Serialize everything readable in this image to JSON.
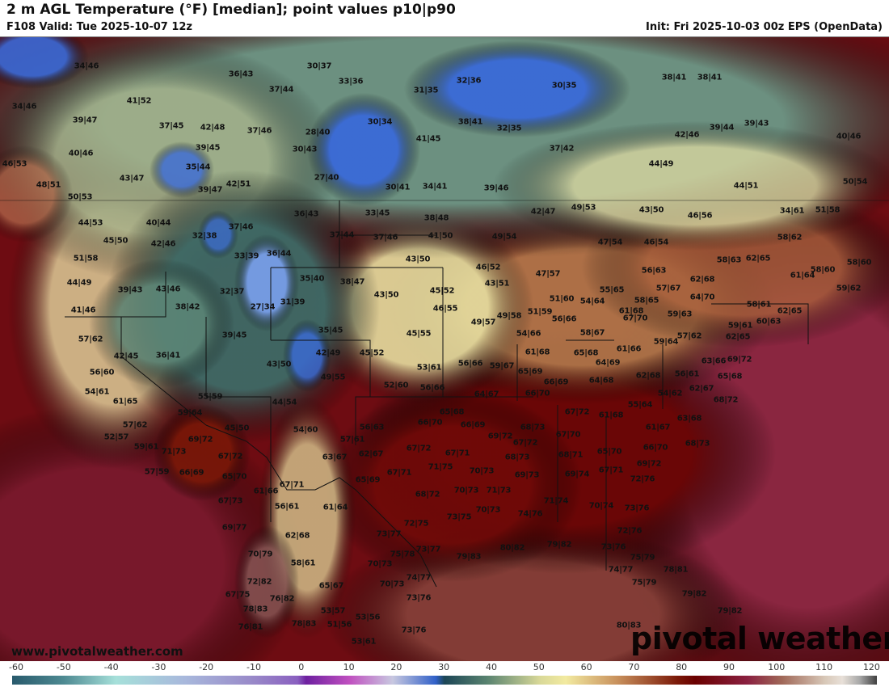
{
  "header": {
    "title": "2 m AGL Temperature (°F) [median]; point values p10|p90",
    "valid": "F108 Valid: Tue 2025-10-07 12z",
    "init": "Init: Fri 2025-10-03 00z EPS (OpenData)"
  },
  "branding": {
    "url": "www.pivotalweather.com",
    "logo": "pivotal weather"
  },
  "colorbar": {
    "unit": "°F",
    "ticks": [
      "-60",
      "-50",
      "-40",
      "-30",
      "-20",
      "-10",
      "0",
      "10",
      "20",
      "30",
      "40",
      "50",
      "60",
      "70",
      "80",
      "90",
      "100",
      "110",
      "120"
    ]
  },
  "points": [
    "34|46",
    "36|43",
    "30|37",
    "33|36",
    "37|44",
    "32|36",
    "31|35",
    "30|35",
    "38|41",
    "38|41",
    "34|46",
    "41|52",
    "39|47",
    "37|45",
    "42|48",
    "37|46",
    "28|40",
    "30|34",
    "38|41",
    "32|35",
    "41|45",
    "39|45",
    "30|43",
    "40|46",
    "46|53",
    "39|44",
    "39|43",
    "42|46",
    "40|46",
    "37|42",
    "35|44",
    "43|47",
    "27|40",
    "44|49",
    "44|51",
    "48|51",
    "39|47",
    "42|51",
    "30|41",
    "34|41",
    "39|46",
    "50|54",
    "50|53",
    "49|53",
    "42|47",
    "43|50",
    "46|56",
    "34|61",
    "51|58",
    "36|43",
    "33|45",
    "38|48",
    "44|53",
    "40|44",
    "37|46",
    "37|44",
    "37|46",
    "41|50",
    "49|54",
    "47|54",
    "46|54",
    "58|62",
    "45|50",
    "42|46",
    "32|38",
    "33|39",
    "36|44",
    "43|50",
    "46|52",
    "47|57",
    "58|63",
    "62|65",
    "58|60",
    "58|60",
    "51|58",
    "56|63",
    "35|40",
    "38|47",
    "44|49",
    "39|43",
    "43|46",
    "32|37",
    "43|51",
    "62|68",
    "61|64",
    "59|62",
    "27|34",
    "31|39",
    "43|50",
    "45|52",
    "55|65",
    "57|67",
    "46|55",
    "51|60",
    "54|64",
    "64|70",
    "38|42",
    "41|46",
    "58|65",
    "59|63",
    "58|61",
    "62|65",
    "49|58",
    "51|59",
    "49|57",
    "61|68",
    "60|63",
    "35|45",
    "39|45",
    "45|55",
    "56|66",
    "67|70",
    "59|61",
    "57|62",
    "54|66",
    "58|67",
    "59|64",
    "57|62",
    "62|65",
    "42|45",
    "36|41",
    "42|49",
    "45|52",
    "61|68",
    "65|68",
    "61|66",
    "63|66",
    "69|72",
    "43|50",
    "53|61",
    "56|66",
    "59|67",
    "65|69",
    "64|69",
    "62|68",
    "56|61",
    "65|68",
    "56|60",
    "49|55",
    "52|60",
    "56|66",
    "66|69",
    "64|68",
    "54|61",
    "64|67",
    "66|70",
    "54|62",
    "62|67",
    "61|65",
    "55|59",
    "44|54",
    "55|64",
    "68|72",
    "59|64",
    "65|68",
    "67|72",
    "61|68",
    "63|68",
    "56|63",
    "66|70",
    "66|69",
    "61|67",
    "45|50",
    "54|60",
    "57|62",
    "69|72",
    "68|73",
    "57|61",
    "67|72",
    "67|70",
    "66|70",
    "68|73",
    "52|57",
    "59|61",
    "71|73",
    "62|67",
    "63|67",
    "67|72",
    "69|72",
    "67|71",
    "68|71",
    "65|70",
    "69|72",
    "67|72",
    "57|59",
    "66|69",
    "65|70",
    "67|71",
    "71|75",
    "70|73",
    "68|73",
    "69|73",
    "69|74",
    "67|71",
    "72|76",
    "61|66",
    "67|71",
    "65|69",
    "68|72",
    "70|73",
    "71|73",
    "67|73",
    "56|61",
    "61|64",
    "70|74",
    "73|76",
    "71|74",
    "74|76",
    "73|75",
    "72|75",
    "70|73",
    "69|77",
    "62|68",
    "73|77",
    "73|77",
    "75|78",
    "79|83",
    "80|82",
    "79|82",
    "72|76",
    "73|76",
    "75|79",
    "74|77",
    "78|81",
    "75|79",
    "70|79",
    "58|61",
    "70|73",
    "74|77",
    "70|73",
    "72|82",
    "65|67",
    "67|75",
    "76|82",
    "73|76",
    "79|82",
    "79|82",
    "78|83",
    "53|57",
    "51|56",
    "53|56",
    "73|76",
    "76|81",
    "78|83",
    "80|83",
    "53|61"
  ]
}
